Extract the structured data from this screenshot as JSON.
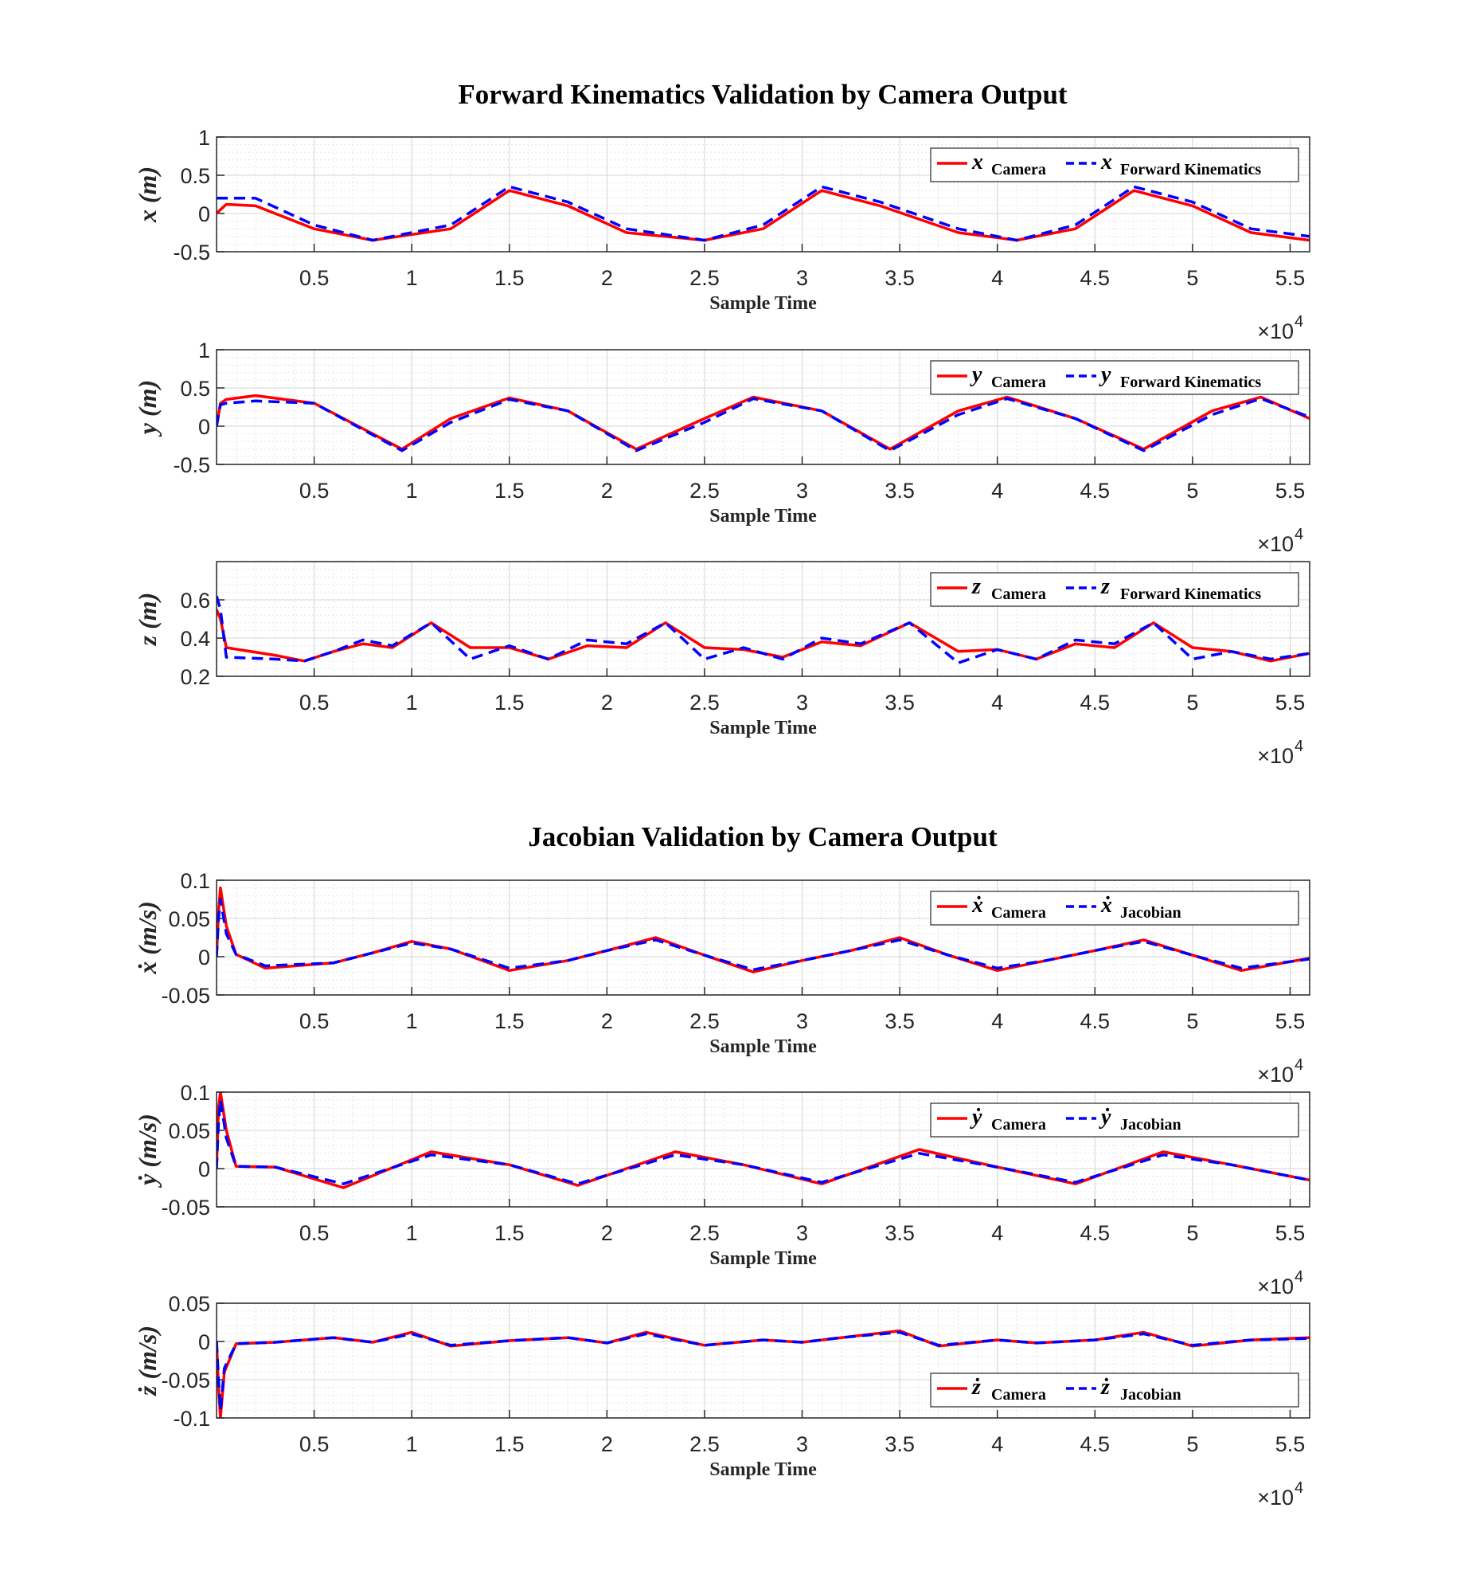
{
  "figure_titles": [
    "Forward Kinematics Validation by Camera Output",
    "Jacobian Validation by Camera Output"
  ],
  "colors": {
    "camera": "#ff0000",
    "model": "#0000ff"
  },
  "chart_data": [
    {
      "type": "line",
      "group_title": "Forward Kinematics Validation by Camera Output",
      "xlabel": "Sample Time",
      "ylabel": "x (m)",
      "x_multiplier": "×10",
      "x_multiplier_exp": "4",
      "xlim": [
        0,
        5.6
      ],
      "ylim": [
        -0.5,
        1
      ],
      "xticks": [
        "0.5",
        "1",
        "1.5",
        "2",
        "2.5",
        "3",
        "3.5",
        "4",
        "4.5",
        "5",
        "5.5"
      ],
      "yticks": [
        "-0.5",
        "0",
        "0.5",
        "1"
      ],
      "legend_position": "top-right",
      "x": [
        0,
        0.02,
        0.05,
        0.2,
        0.5,
        0.8,
        1.2,
        1.5,
        1.8,
        2.1,
        2.5,
        2.8,
        3.1,
        3.4,
        3.8,
        4.1,
        4.4,
        4.7,
        5.0,
        5.3,
        5.6
      ],
      "series": [
        {
          "name": "Camera",
          "sym": "x",
          "values": [
            0,
            0.05,
            0.12,
            0.1,
            -0.2,
            -0.35,
            -0.2,
            0.3,
            0.1,
            -0.25,
            -0.35,
            -0.2,
            0.3,
            0.1,
            -0.25,
            -0.35,
            -0.2,
            0.3,
            0.1,
            -0.25,
            -0.35
          ]
        },
        {
          "name": "Forward Kinematics",
          "sym": "x",
          "values": [
            0.2,
            0.2,
            0.2,
            0.2,
            -0.15,
            -0.35,
            -0.15,
            0.35,
            0.15,
            -0.2,
            -0.35,
            -0.15,
            0.35,
            0.15,
            -0.2,
            -0.35,
            -0.15,
            0.35,
            0.15,
            -0.2,
            -0.3
          ]
        }
      ]
    },
    {
      "type": "line",
      "xlabel": "Sample Time",
      "ylabel": "y (m)",
      "x_multiplier": "×10",
      "x_multiplier_exp": "4",
      "xlim": [
        0,
        5.6
      ],
      "ylim": [
        -0.5,
        1
      ],
      "xticks": [
        "0.5",
        "1",
        "1.5",
        "2",
        "2.5",
        "3",
        "3.5",
        "4",
        "4.5",
        "5",
        "5.5"
      ],
      "yticks": [
        "-0.5",
        "0",
        "0.5",
        "1"
      ],
      "legend_position": "top-right",
      "x": [
        0,
        0.02,
        0.05,
        0.2,
        0.5,
        0.95,
        1.2,
        1.5,
        1.8,
        2.15,
        2.5,
        2.75,
        3.1,
        3.45,
        3.8,
        4.05,
        4.4,
        4.75,
        5.1,
        5.35,
        5.6
      ],
      "series": [
        {
          "name": "Camera",
          "sym": "y",
          "values": [
            0,
            0.3,
            0.35,
            0.4,
            0.3,
            -0.3,
            0.1,
            0.37,
            0.2,
            -0.3,
            0.1,
            0.38,
            0.2,
            -0.3,
            0.2,
            0.38,
            0.1,
            -0.3,
            0.2,
            0.38,
            0.1
          ]
        },
        {
          "name": "Forward Kinematics",
          "sym": "y",
          "values": [
            0,
            0.28,
            0.3,
            0.33,
            0.3,
            -0.32,
            0.05,
            0.35,
            0.2,
            -0.32,
            0.05,
            0.36,
            0.2,
            -0.32,
            0.15,
            0.36,
            0.1,
            -0.32,
            0.15,
            0.36,
            0.12
          ]
        }
      ]
    },
    {
      "type": "line",
      "xlabel": "Sample Time",
      "ylabel": "z (m)",
      "x_multiplier": "×10",
      "x_multiplier_exp": "4",
      "xlim": [
        0,
        5.6
      ],
      "ylim": [
        0.2,
        0.8
      ],
      "xticks": [
        "0.5",
        "1",
        "1.5",
        "2",
        "2.5",
        "3",
        "3.5",
        "4",
        "4.5",
        "5",
        "5.5"
      ],
      "yticks": [
        "0.2",
        "0.4",
        "0.6"
      ],
      "legend_position": "top-right",
      "x": [
        0,
        0.02,
        0.05,
        0.3,
        0.45,
        0.6,
        0.75,
        0.9,
        1.1,
        1.3,
        1.5,
        1.7,
        1.9,
        2.1,
        2.3,
        2.5,
        2.7,
        2.9,
        3.1,
        3.3,
        3.55,
        3.8,
        4.0,
        4.2,
        4.4,
        4.6,
        4.8,
        5.0,
        5.2,
        5.4,
        5.6
      ],
      "series": [
        {
          "name": "Camera",
          "sym": "z",
          "values": [
            0.55,
            0.5,
            0.35,
            0.31,
            0.28,
            0.33,
            0.37,
            0.35,
            0.48,
            0.35,
            0.35,
            0.29,
            0.36,
            0.35,
            0.48,
            0.35,
            0.34,
            0.3,
            0.38,
            0.36,
            0.48,
            0.33,
            0.34,
            0.29,
            0.37,
            0.35,
            0.48,
            0.35,
            0.33,
            0.28,
            0.32
          ]
        },
        {
          "name": "Forward Kinematics",
          "sym": "z",
          "values": [
            0.62,
            0.55,
            0.3,
            0.29,
            0.28,
            0.33,
            0.39,
            0.36,
            0.48,
            0.29,
            0.36,
            0.29,
            0.39,
            0.37,
            0.48,
            0.29,
            0.35,
            0.29,
            0.4,
            0.37,
            0.48,
            0.27,
            0.34,
            0.29,
            0.39,
            0.37,
            0.48,
            0.29,
            0.33,
            0.29,
            0.32
          ]
        }
      ]
    },
    {
      "type": "line",
      "group_title": "Jacobian Validation by Camera Output",
      "xlabel": "Sample Time",
      "ylabel": "ẋ (m/s)",
      "x_multiplier": "×10",
      "x_multiplier_exp": "4",
      "xlim": [
        0,
        5.6
      ],
      "ylim": [
        -0.05,
        0.1
      ],
      "xticks": [
        "0.5",
        "1",
        "1.5",
        "2",
        "2.5",
        "3",
        "3.5",
        "4",
        "4.5",
        "5",
        "5.5"
      ],
      "yticks": [
        "-0.05",
        "0",
        "0.05",
        "0.1"
      ],
      "legend_position": "top-right",
      "x": [
        0,
        0.01,
        0.02,
        0.05,
        0.1,
        0.25,
        0.6,
        0.8,
        1.0,
        1.2,
        1.5,
        1.8,
        2.0,
        2.25,
        2.5,
        2.75,
        3.0,
        3.25,
        3.5,
        3.75,
        4.0,
        4.25,
        4.5,
        4.75,
        5.0,
        5.25,
        5.6
      ],
      "series": [
        {
          "name": "Camera",
          "sym": "ẋ",
          "values": [
            0,
            0.06,
            0.09,
            0.04,
            0.003,
            -0.015,
            -0.008,
            0.005,
            0.02,
            0.01,
            -0.018,
            -0.005,
            0.008,
            0.025,
            0.002,
            -0.02,
            -0.005,
            0.008,
            0.025,
            0.002,
            -0.018,
            -0.005,
            0.008,
            0.022,
            0.002,
            -0.018,
            -0.002
          ]
        },
        {
          "name": "Jacobian",
          "sym": "ẋ",
          "values": [
            0,
            0.05,
            0.075,
            0.03,
            0.003,
            -0.012,
            -0.008,
            0.005,
            0.018,
            0.01,
            -0.015,
            -0.005,
            0.008,
            0.022,
            0.002,
            -0.017,
            -0.005,
            0.008,
            0.022,
            0.002,
            -0.015,
            -0.005,
            0.008,
            0.02,
            0.002,
            -0.015,
            -0.003
          ]
        }
      ]
    },
    {
      "type": "line",
      "xlabel": "Sample Time",
      "ylabel": "ẏ (m/s)",
      "x_multiplier": "×10",
      "x_multiplier_exp": "4",
      "xlim": [
        0,
        5.6
      ],
      "ylim": [
        -0.05,
        0.1
      ],
      "xticks": [
        "0.5",
        "1",
        "1.5",
        "2",
        "2.5",
        "3",
        "3.5",
        "4",
        "4.5",
        "5",
        "5.5"
      ],
      "yticks": [
        "-0.05",
        "0",
        "0.05",
        "0.1"
      ],
      "legend_position": "top-right",
      "x": [
        0,
        0.01,
        0.02,
        0.05,
        0.1,
        0.3,
        0.65,
        1.1,
        1.5,
        1.85,
        2.35,
        2.7,
        3.1,
        3.6,
        4.0,
        4.4,
        4.85,
        5.2,
        5.6
      ],
      "series": [
        {
          "name": "Camera",
          "sym": "ẏ",
          "values": [
            0,
            0.08,
            0.1,
            0.05,
            0.003,
            0.002,
            -0.025,
            0.022,
            0.005,
            -0.022,
            0.022,
            0.005,
            -0.02,
            0.025,
            0.002,
            -0.02,
            0.022,
            0.005,
            -0.015
          ]
        },
        {
          "name": "Jacobian",
          "sym": "ẏ",
          "values": [
            0,
            0.06,
            0.09,
            0.04,
            0.003,
            0.002,
            -0.02,
            0.018,
            0.005,
            -0.02,
            0.018,
            0.005,
            -0.018,
            0.02,
            0.002,
            -0.018,
            0.018,
            0.005,
            -0.015
          ]
        }
      ]
    },
    {
      "type": "line",
      "xlabel": "Sample Time",
      "ylabel": "ż (m/s)",
      "x_multiplier": "×10",
      "x_multiplier_exp": "4",
      "xlim": [
        0,
        5.6
      ],
      "ylim": [
        -0.1,
        0.05
      ],
      "xticks": [
        "0.5",
        "1",
        "1.5",
        "2",
        "2.5",
        "3",
        "3.5",
        "4",
        "4.5",
        "5",
        "5.5"
      ],
      "yticks": [
        "-0.1",
        "-0.05",
        "0",
        "0.05"
      ],
      "legend_position": "bottom-right",
      "x": [
        0,
        0.01,
        0.02,
        0.04,
        0.1,
        0.3,
        0.6,
        0.8,
        1.0,
        1.2,
        1.5,
        1.8,
        2.0,
        2.2,
        2.5,
        2.8,
        3.0,
        3.2,
        3.5,
        3.7,
        4.0,
        4.2,
        4.5,
        4.75,
        5.0,
        5.3,
        5.6
      ],
      "series": [
        {
          "name": "Camera",
          "sym": "ż",
          "values": [
            0,
            -0.06,
            -0.1,
            -0.04,
            -0.003,
            -0.001,
            0.005,
            -0.001,
            0.012,
            -0.006,
            0.001,
            0.005,
            -0.002,
            0.012,
            -0.005,
            0.002,
            -0.001,
            0.005,
            0.014,
            -0.006,
            0.002,
            -0.002,
            0.002,
            0.012,
            -0.006,
            0.002,
            0.005
          ]
        },
        {
          "name": "Jacobian",
          "sym": "ż",
          "values": [
            0,
            -0.05,
            -0.09,
            -0.035,
            -0.003,
            -0.001,
            0.005,
            -0.001,
            0.01,
            -0.005,
            0.001,
            0.005,
            -0.002,
            0.01,
            -0.005,
            0.002,
            -0.001,
            0.005,
            0.012,
            -0.005,
            0.002,
            -0.002,
            0.002,
            0.01,
            -0.005,
            0.002,
            0.004
          ]
        }
      ]
    }
  ]
}
